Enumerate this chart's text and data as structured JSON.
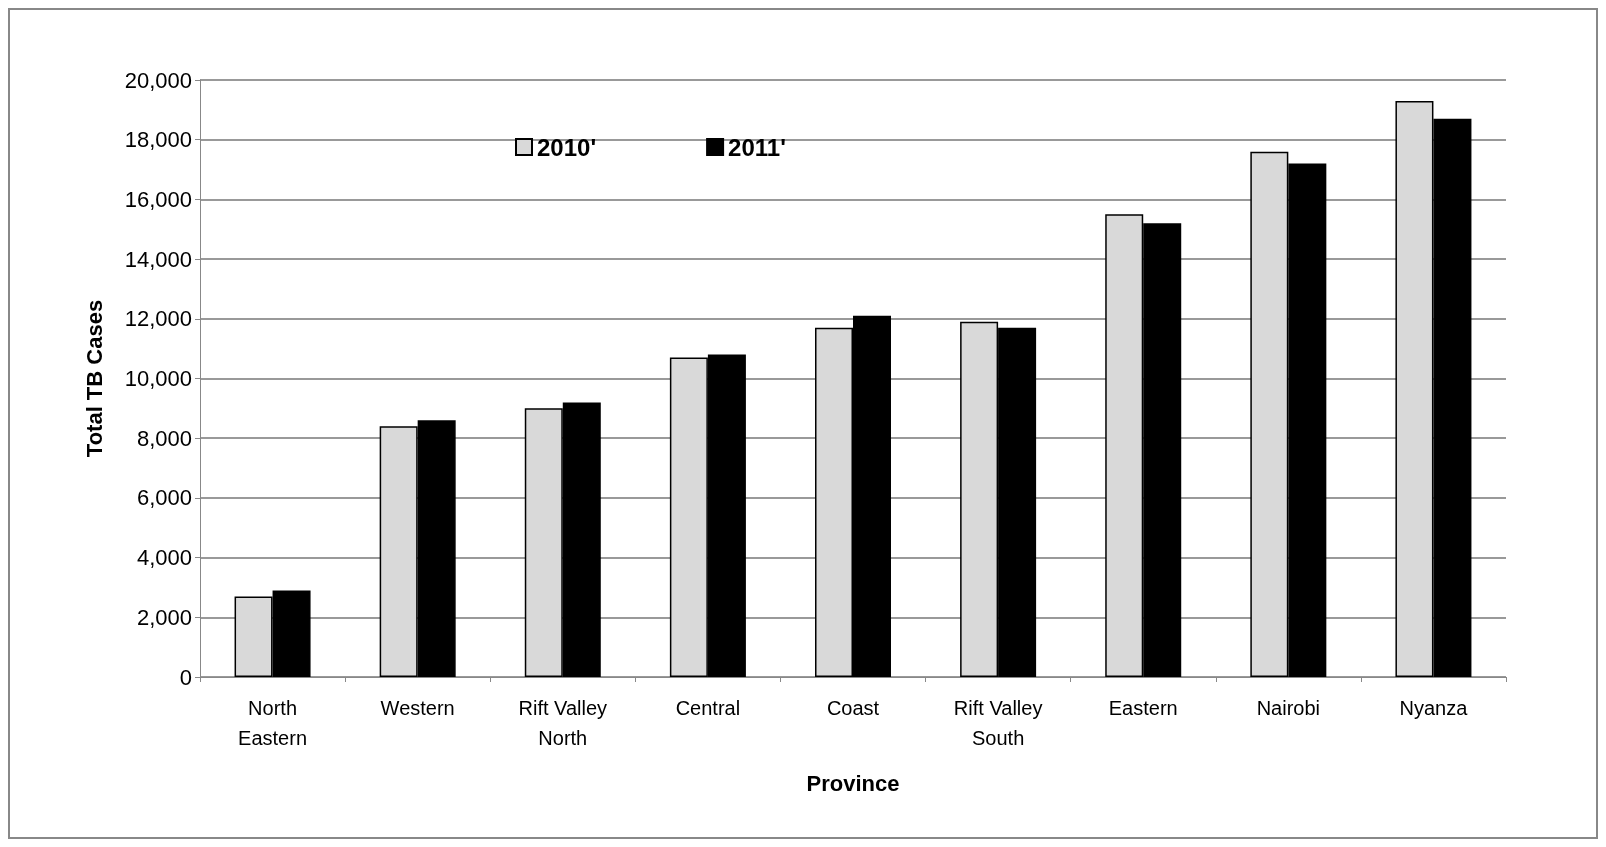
{
  "chart_data": {
    "type": "bar",
    "xlabel": "Province",
    "ylabel": "Total TB Cases",
    "categories": [
      "North\nEastern",
      "Western",
      "Rift Valley\nNorth",
      "Central",
      "Coast",
      "Rift Valley\nSouth",
      "Eastern",
      "Nairobi",
      "Nyanza"
    ],
    "series": [
      {
        "name": "2010'",
        "color": "#d9d9d9",
        "values": [
          2700,
          8400,
          9000,
          10700,
          11700,
          11900,
          15500,
          17600,
          19300
        ]
      },
      {
        "name": "2011'",
        "color": "#000000",
        "values": [
          2900,
          8600,
          9200,
          10800,
          12100,
          11700,
          15200,
          17200,
          18700
        ]
      }
    ],
    "ylim": [
      0,
      20000
    ],
    "yticks": [
      0,
      {
        "value": 2000,
        "label": "2,000"
      },
      {
        "value": 4000,
        "label": "4,000"
      },
      {
        "value": 6000,
        "label": "6,000"
      },
      {
        "value": 8000,
        "label": "8,000"
      },
      {
        "value": 10000,
        "label": "10,000"
      },
      {
        "value": 12000,
        "label": "12,000"
      },
      {
        "value": 14000,
        "label": "14,000"
      },
      {
        "value": 16000,
        "label": "16,000"
      },
      {
        "value": 18000,
        "label": "18,000"
      },
      {
        "value": 20000,
        "label": "20,000"
      }
    ],
    "grid": "y",
    "legend": "top left"
  }
}
